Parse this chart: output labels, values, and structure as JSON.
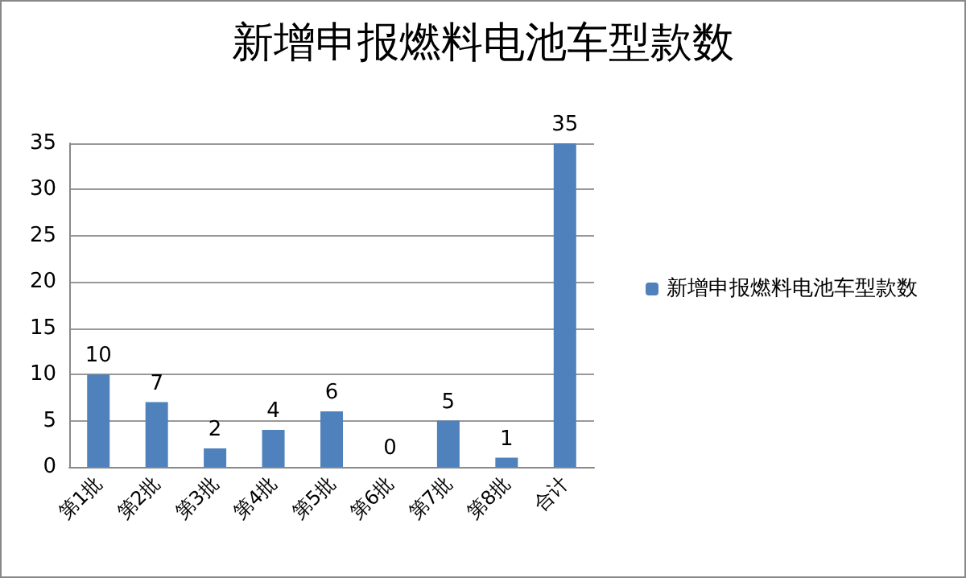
{
  "chart_data": {
    "type": "bar",
    "title": "新增申报燃料电池车型款数",
    "categories": [
      "第1批",
      "第2批",
      "第3批",
      "第4批",
      "第5批",
      "第6批",
      "第7批",
      "第8批",
      "合计"
    ],
    "series": [
      {
        "name": "新增申报燃料电池车型款数",
        "color": "#4f81bd",
        "values": [
          10,
          7,
          2,
          4,
          6,
          0,
          5,
          1,
          35
        ]
      }
    ],
    "ylim": [
      0,
      35
    ],
    "yticks": [
      0,
      5,
      10,
      15,
      20,
      25,
      30,
      35
    ],
    "grid": "y",
    "legend": "right",
    "data_labels": true
  }
}
